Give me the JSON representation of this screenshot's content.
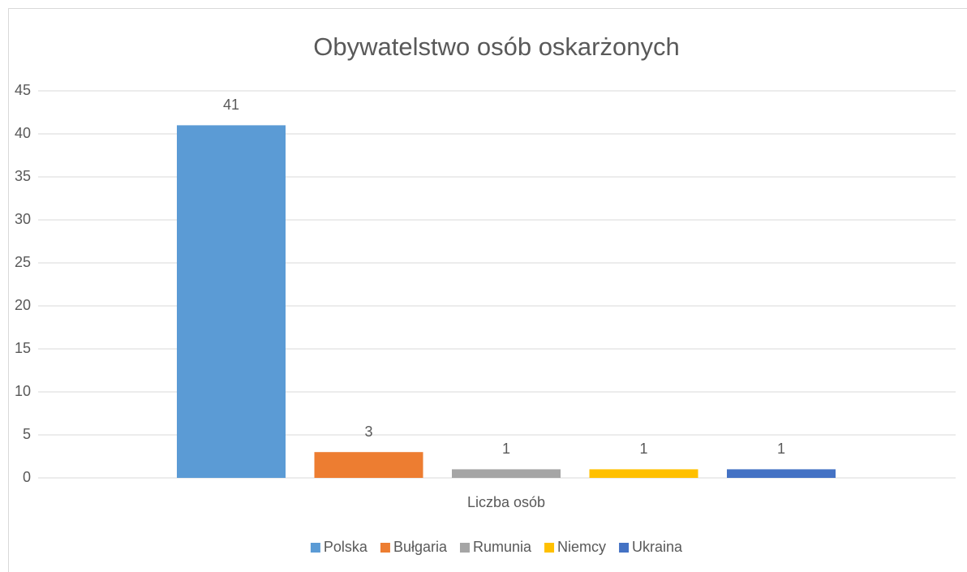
{
  "chart_data": {
    "type": "bar",
    "title": "Obywatelstwo osób oskarżonych",
    "categories": [
      "Liczba osób"
    ],
    "series": [
      {
        "name": "Polska",
        "color": "#5b9bd5",
        "values": [
          41
        ]
      },
      {
        "name": "Bułgaria",
        "color": "#ed7d31",
        "values": [
          3
        ]
      },
      {
        "name": "Rumunia",
        "color": "#a5a5a5",
        "values": [
          1
        ]
      },
      {
        "name": "Niemcy",
        "color": "#ffc000",
        "values": [
          1
        ]
      },
      {
        "name": "Ukraina",
        "color": "#4472c4",
        "values": [
          1
        ]
      }
    ],
    "ylim": [
      0,
      45
    ],
    "yticks": [
      0,
      5,
      10,
      15,
      20,
      25,
      30,
      35,
      40,
      45
    ],
    "grid": true,
    "legend": "bottom"
  }
}
